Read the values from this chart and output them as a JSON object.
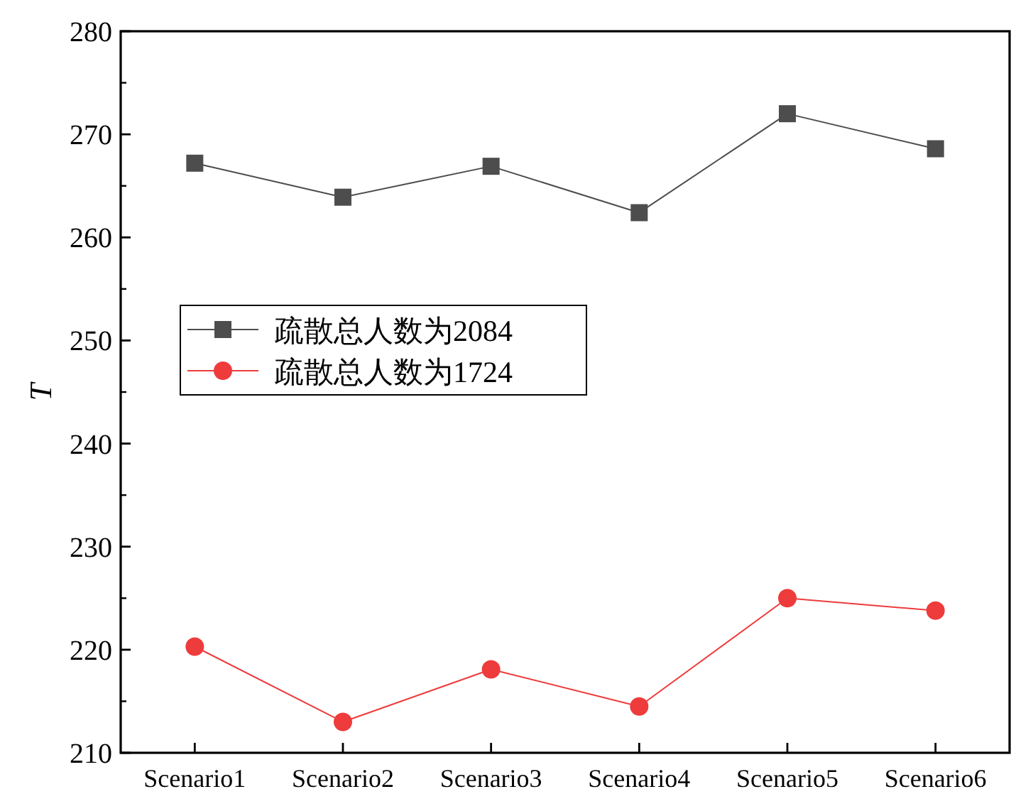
{
  "chart_data": {
    "type": "line",
    "ylabel": "T",
    "categories": [
      "Scenario1",
      "Scenario2",
      "Scenario3",
      "Scenario4",
      "Scenario5",
      "Scenario6"
    ],
    "series": [
      {
        "name": "疏散总人数为2084",
        "color": "#4d4d4d",
        "marker": "square",
        "values": [
          267.2,
          263.9,
          266.9,
          262.4,
          272.0,
          268.6
        ]
      },
      {
        "name": "疏散总人数为1724",
        "color": "#ee3b3b",
        "marker": "circle",
        "values": [
          220.3,
          213.0,
          218.1,
          214.5,
          225.0,
          223.8
        ]
      }
    ],
    "ylim": [
      210,
      280
    ],
    "yticks": [
      210,
      220,
      230,
      240,
      250,
      260,
      270,
      280
    ],
    "legend": "left"
  }
}
